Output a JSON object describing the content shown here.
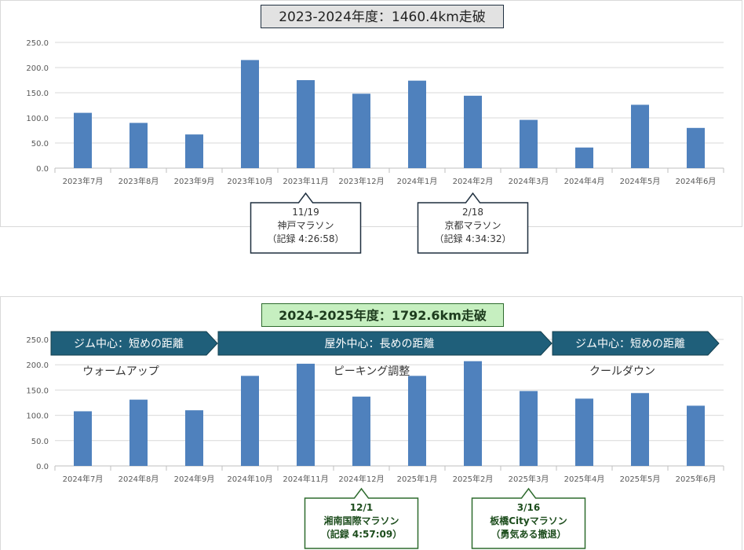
{
  "colors": {
    "bar": "#4f81bd",
    "gridline": "#d9d9d9",
    "phase_fill": "#1f5f7a",
    "callout_top_border": "#1f2f3f",
    "callout_bottom_border": "#2e6b2e",
    "callout_bottom_text": "#1d4d1d"
  },
  "chart_data": [
    {
      "type": "bar",
      "title": "2023-2024年度：1460.4km走破",
      "categories": [
        "2023年7月",
        "2023年8月",
        "2023年9月",
        "2023年10月",
        "2023年11月",
        "2023年12月",
        "2024年1月",
        "2024年2月",
        "2024年3月",
        "2024年4月",
        "2024年5月",
        "2024年6月"
      ],
      "values": [
        110,
        90,
        67,
        215,
        175,
        148,
        174,
        144,
        96,
        41,
        126,
        80
      ],
      "ylim": [
        0,
        250
      ],
      "yticks": [
        "0.0",
        "50.0",
        "100.0",
        "150.0",
        "200.0",
        "250.0"
      ],
      "grid": true,
      "annotations": [
        {
          "category_index": 4,
          "lines": [
            "11/19",
            "神戸マラソン",
            "（記録 4:26:58）"
          ]
        },
        {
          "category_index": 7,
          "lines": [
            "2/18",
            "京都マラソン",
            "（記録 4:34:32）"
          ]
        }
      ]
    },
    {
      "type": "bar",
      "title": "2024-2025年度：1792.6km走破",
      "categories": [
        "2024年7月",
        "2024年8月",
        "2024年9月",
        "2024年10月",
        "2024年11月",
        "2024年12月",
        "2025年1月",
        "2025年2月",
        "2025年3月",
        "2025年4月",
        "2025年5月",
        "2025年6月"
      ],
      "values": [
        108,
        131,
        110,
        178,
        202,
        137,
        178,
        207,
        148,
        133,
        144,
        119
      ],
      "ylim": [
        0,
        250
      ],
      "yticks": [
        "0.0",
        "50.0",
        "100.0",
        "150.0",
        "200.0",
        "250.0"
      ],
      "grid": true,
      "phases": [
        {
          "start_index": 0,
          "end_index": 2,
          "label": "ジム中心：短めの距離",
          "sub": "ウォームアップ"
        },
        {
          "start_index": 3,
          "end_index": 8,
          "label": "屋外中心：長めの距離",
          "sub": "ピーキング調整"
        },
        {
          "start_index": 9,
          "end_index": 11,
          "label": "ジム中心：短めの距離",
          "sub": "クールダウン"
        }
      ],
      "annotations": [
        {
          "category_index": 5,
          "lines": [
            "12/1",
            "湘南国際マラソン",
            "（記録 4:57:09）"
          ]
        },
        {
          "category_index": 8,
          "lines": [
            "3/16",
            "板橋Cityマラソン",
            "（勇気ある撤退）"
          ]
        }
      ]
    }
  ]
}
